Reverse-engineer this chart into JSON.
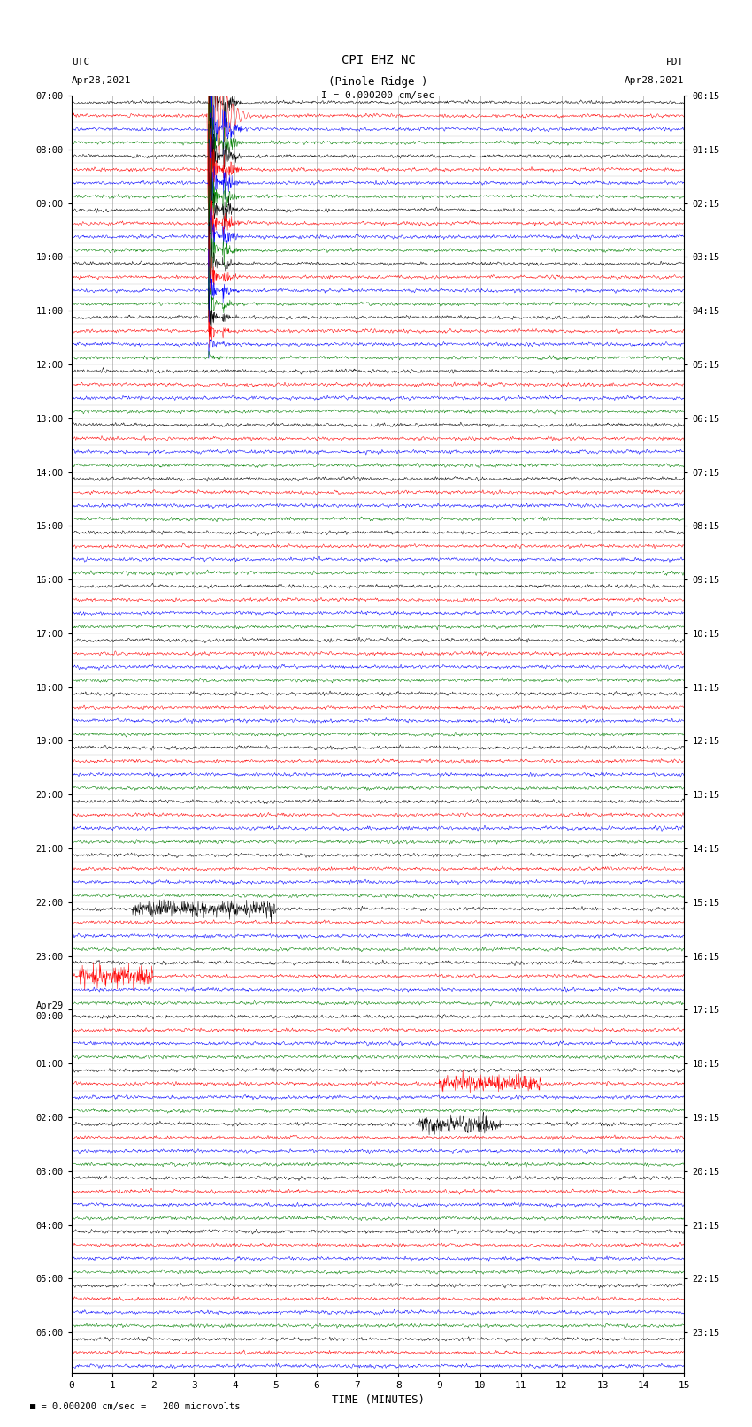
{
  "title_line1": "CPI EHZ NC",
  "title_line2": "(Pinole Ridge )",
  "scale_label": "I = 0.000200 cm/sec",
  "left_header_line1": "UTC",
  "left_header_line2": "Apr28,2021",
  "right_header_line1": "PDT",
  "right_header_line2": "Apr28,2021",
  "bottom_label": "TIME (MINUTES)",
  "footnote": "= 0.000200 cm/sec =   200 microvolts",
  "utc_times": [
    "07:00",
    "",
    "",
    "",
    "08:00",
    "",
    "",
    "",
    "09:00",
    "",
    "",
    "",
    "10:00",
    "",
    "",
    "",
    "11:00",
    "",
    "",
    "",
    "12:00",
    "",
    "",
    "",
    "13:00",
    "",
    "",
    "",
    "14:00",
    "",
    "",
    "",
    "15:00",
    "",
    "",
    "",
    "16:00",
    "",
    "",
    "",
    "17:00",
    "",
    "",
    "",
    "18:00",
    "",
    "",
    "",
    "19:00",
    "",
    "",
    "",
    "20:00",
    "",
    "",
    "",
    "21:00",
    "",
    "",
    "",
    "22:00",
    "",
    "",
    "",
    "23:00",
    "",
    "",
    "",
    "Apr29\n00:00",
    "",
    "",
    "",
    "01:00",
    "",
    "",
    "",
    "02:00",
    "",
    "",
    "",
    "03:00",
    "",
    "",
    "",
    "04:00",
    "",
    "",
    "",
    "05:00",
    "",
    "",
    "",
    "06:00",
    "",
    ""
  ],
  "pdt_times": [
    "00:15",
    "",
    "",
    "",
    "01:15",
    "",
    "",
    "",
    "02:15",
    "",
    "",
    "",
    "03:15",
    "",
    "",
    "",
    "04:15",
    "",
    "",
    "",
    "05:15",
    "",
    "",
    "",
    "06:15",
    "",
    "",
    "",
    "07:15",
    "",
    "",
    "",
    "08:15",
    "",
    "",
    "",
    "09:15",
    "",
    "",
    "",
    "10:15",
    "",
    "",
    "",
    "11:15",
    "",
    "",
    "",
    "12:15",
    "",
    "",
    "",
    "13:15",
    "",
    "",
    "",
    "14:15",
    "",
    "",
    "",
    "15:15",
    "",
    "",
    "",
    "16:15",
    "",
    "",
    "",
    "17:15",
    "",
    "",
    "",
    "18:15",
    "",
    "",
    "",
    "19:15",
    "",
    "",
    "",
    "20:15",
    "",
    "",
    "",
    "21:15",
    "",
    "",
    "",
    "22:15",
    "",
    "",
    "",
    "23:15",
    "",
    ""
  ],
  "colors": [
    "black",
    "red",
    "blue",
    "green"
  ],
  "bg_color": "white",
  "grid_color": "#888888",
  "num_rows": 95,
  "minutes": 15,
  "fig_width": 8.5,
  "fig_height": 16.13,
  "noise_seed": 42
}
